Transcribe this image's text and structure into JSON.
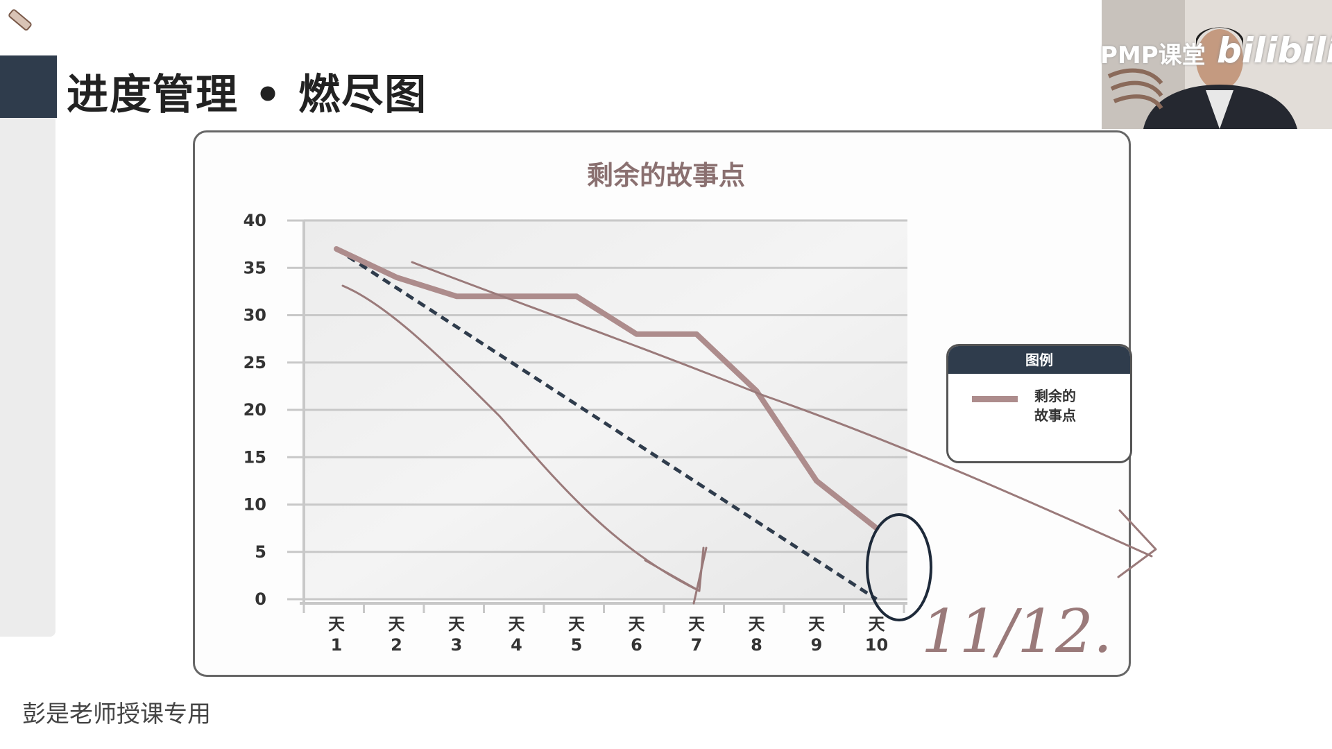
{
  "slide": {
    "title": "进度管理 • 燃尽图",
    "footer": "彭是老师授课专用"
  },
  "overlay": {
    "watermark": "PMP课堂",
    "logo": "bilibili"
  },
  "legend": {
    "header": "图例",
    "label_line1": "剩余的",
    "label_line2": "故事点"
  },
  "annotations": {
    "handwritten_text": "11/12."
  },
  "chart_data": {
    "type": "line",
    "title": "剩余的故事点",
    "categories": [
      {
        "top": "天",
        "bottom": "1"
      },
      {
        "top": "天",
        "bottom": "2"
      },
      {
        "top": "天",
        "bottom": "3"
      },
      {
        "top": "天",
        "bottom": "4"
      },
      {
        "top": "天",
        "bottom": "5"
      },
      {
        "top": "天",
        "bottom": "6"
      },
      {
        "top": "天",
        "bottom": "7"
      },
      {
        "top": "天",
        "bottom": "8"
      },
      {
        "top": "天",
        "bottom": "9"
      },
      {
        "top": "天",
        "bottom": "10"
      }
    ],
    "ylim": [
      0,
      40
    ],
    "yticks": [
      0,
      5,
      10,
      15,
      20,
      25,
      30,
      35,
      40
    ],
    "grid": true,
    "series": [
      {
        "name": "剩余的故事点",
        "values": [
          37,
          34,
          32,
          32,
          32,
          28,
          28,
          22,
          12.5,
          7.5
        ],
        "color": "#ad8c8c"
      }
    ],
    "ideal_line": {
      "values": [
        37,
        0
      ],
      "days": [
        1,
        10
      ],
      "style": "dashed",
      "color": "#2f3c4c"
    },
    "legend_position": "right"
  }
}
